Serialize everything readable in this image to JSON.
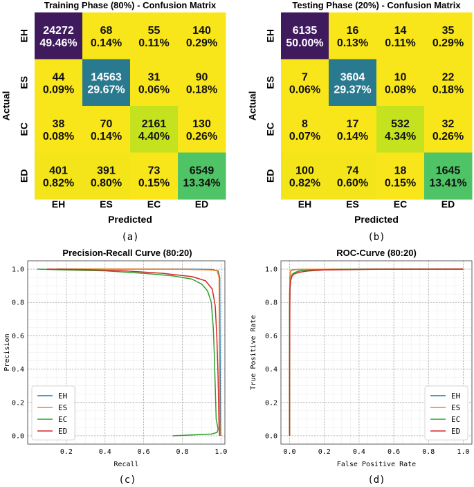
{
  "chart_data": [
    {
      "type": "heatmap",
      "id": "cm-train",
      "title": "Training Phase (80%) - Confusion Matrix",
      "xlabel": "Predicted",
      "ylabel": "Actual",
      "caption": "(a)",
      "categories": [
        "EH",
        "ES",
        "EC",
        "ED"
      ],
      "counts": [
        [
          24272,
          68,
          55,
          140
        ],
        [
          44,
          14563,
          31,
          90
        ],
        [
          38,
          70,
          2161,
          130
        ],
        [
          401,
          391,
          73,
          6549
        ]
      ],
      "percents": [
        [
          "49.46%",
          "0.14%",
          "0.11%",
          "0.29%"
        ],
        [
          "0.09%",
          "29.67%",
          "0.06%",
          "0.18%"
        ],
        [
          "0.08%",
          "0.14%",
          "4.40%",
          "0.26%"
        ],
        [
          "0.82%",
          "0.80%",
          "0.15%",
          "13.34%"
        ]
      ],
      "cell_colors": [
        [
          "#3f1a5c",
          "#f9e61a",
          "#f9e61a",
          "#f9e61a"
        ],
        [
          "#f9e61a",
          "#2a7a8f",
          "#f9e61a",
          "#f9e61a"
        ],
        [
          "#f9e61a",
          "#f9e61a",
          "#c5e21f",
          "#f9e61a"
        ],
        [
          "#f3e51a",
          "#f3e51a",
          "#f9e61a",
          "#4fc466"
        ]
      ],
      "dark_text_cells": [
        [
          false,
          true,
          true,
          true
        ],
        [
          true,
          false,
          true,
          true
        ],
        [
          true,
          true,
          true,
          true
        ],
        [
          true,
          true,
          true,
          true
        ]
      ]
    },
    {
      "type": "heatmap",
      "id": "cm-test",
      "title": "Testing Phase (20%) - Confusion Matrix",
      "xlabel": "Predicted",
      "ylabel": "Actual",
      "caption": "(b)",
      "categories": [
        "EH",
        "ES",
        "EC",
        "ED"
      ],
      "counts": [
        [
          6135,
          16,
          14,
          35
        ],
        [
          7,
          3604,
          10,
          22
        ],
        [
          8,
          17,
          532,
          32
        ],
        [
          100,
          74,
          18,
          1645
        ]
      ],
      "percents": [
        [
          "50.00%",
          "0.13%",
          "0.11%",
          "0.29%"
        ],
        [
          "0.06%",
          "29.37%",
          "0.08%",
          "0.18%"
        ],
        [
          "0.07%",
          "0.14%",
          "4.34%",
          "0.26%"
        ],
        [
          "0.82%",
          "0.60%",
          "0.15%",
          "13.41%"
        ]
      ],
      "cell_colors": [
        [
          "#3f1a5c",
          "#f9e61a",
          "#f9e61a",
          "#f9e61a"
        ],
        [
          "#f9e61a",
          "#2a7a8f",
          "#f9e61a",
          "#f9e61a"
        ],
        [
          "#f9e61a",
          "#f9e61a",
          "#c5e21f",
          "#f9e61a"
        ],
        [
          "#f3e51a",
          "#f3e51a",
          "#f9e61a",
          "#4fc466"
        ]
      ],
      "dark_text_cells": [
        [
          false,
          true,
          true,
          true
        ],
        [
          true,
          false,
          true,
          true
        ],
        [
          true,
          true,
          true,
          true
        ],
        [
          true,
          true,
          true,
          true
        ]
      ]
    },
    {
      "type": "line",
      "id": "pr-curve",
      "title": "Precision-Recall Curve (80:20)",
      "xlabel": "Recall",
      "ylabel": "Precision",
      "caption": "(c)",
      "xlim": [
        0.0,
        1.02
      ],
      "ylim": [
        -0.05,
        1.05
      ],
      "xticks": [
        "0.2",
        "0.4",
        "0.6",
        "0.8",
        "1.0"
      ],
      "xtick_values": [
        0.2,
        0.4,
        0.6,
        0.8,
        1.0
      ],
      "yticks": [
        "0.0",
        "0.2",
        "0.4",
        "0.6",
        "0.8",
        "1.0"
      ],
      "ytick_values": [
        0.0,
        0.2,
        0.4,
        0.6,
        0.8,
        1.0
      ],
      "grid": true,
      "legend_position": "bottom-left",
      "series": [
        {
          "name": "EH",
          "color": "#1f77b4",
          "x": [
            0.15,
            0.5,
            0.8,
            0.95,
            0.985,
            0.993,
            0.995,
            0.997,
            0.998
          ],
          "y": [
            1.0,
            1.0,
            1.0,
            0.998,
            0.99,
            0.95,
            0.5,
            0.1,
            0.0
          ]
        },
        {
          "name": "ES",
          "color": "#ff7f0e",
          "x": [
            0.15,
            0.5,
            0.8,
            0.95,
            0.98,
            0.99,
            0.992,
            0.994,
            0.995
          ],
          "y": [
            1.0,
            1.0,
            0.999,
            0.995,
            0.99,
            0.95,
            0.5,
            0.1,
            0.0
          ]
        },
        {
          "name": "EC",
          "color": "#2ca02c",
          "x": [
            0.05,
            0.2,
            0.4,
            0.6,
            0.75,
            0.85,
            0.9,
            0.93,
            0.95,
            0.96,
            0.965,
            0.97,
            0.975,
            0.985,
            0.98,
            0.95,
            0.85,
            0.75
          ],
          "y": [
            1.0,
            0.995,
            0.99,
            0.975,
            0.96,
            0.94,
            0.91,
            0.87,
            0.8,
            0.65,
            0.5,
            0.3,
            0.1,
            0.04,
            0.02,
            0.01,
            0.005,
            0.0
          ]
        },
        {
          "name": "ED",
          "color": "#d62728",
          "x": [
            0.1,
            0.3,
            0.5,
            0.7,
            0.85,
            0.92,
            0.955,
            0.97,
            0.978,
            0.985,
            0.988,
            0.99,
            0.992,
            0.993
          ],
          "y": [
            1.0,
            0.997,
            0.99,
            0.975,
            0.955,
            0.93,
            0.88,
            0.78,
            0.6,
            0.35,
            0.15,
            0.05,
            0.01,
            0.0
          ]
        }
      ]
    },
    {
      "type": "line",
      "id": "roc-curve",
      "title": "ROC-Curve (80:20)",
      "xlabel": "False Positive Rate",
      "ylabel": "True Positive Rate",
      "caption": "(d)",
      "xlim": [
        -0.05,
        1.05
      ],
      "ylim": [
        -0.05,
        1.05
      ],
      "xticks": [
        "0.0",
        "0.2",
        "0.4",
        "0.6",
        "0.8",
        "1.0"
      ],
      "xtick_values": [
        0.0,
        0.2,
        0.4,
        0.6,
        0.8,
        1.0
      ],
      "yticks": [
        "0.0",
        "0.2",
        "0.4",
        "0.6",
        "0.8",
        "1.0"
      ],
      "ytick_values": [
        0.0,
        0.2,
        0.4,
        0.6,
        0.8,
        1.0
      ],
      "grid": true,
      "legend_position": "bottom-right",
      "series": [
        {
          "name": "EH",
          "color": "#1f77b4",
          "x": [
            0.0,
            0.0,
            0.002,
            0.005,
            0.01,
            0.03,
            0.1,
            0.5,
            1.0
          ],
          "y": [
            0.0,
            0.8,
            0.95,
            0.985,
            0.993,
            0.997,
            0.999,
            1.0,
            1.0
          ]
        },
        {
          "name": "ES",
          "color": "#ff7f0e",
          "x": [
            0.0,
            0.0,
            0.002,
            0.005,
            0.01,
            0.03,
            0.1,
            0.5,
            1.0
          ],
          "y": [
            0.0,
            0.85,
            0.96,
            0.99,
            0.995,
            0.998,
            0.999,
            1.0,
            1.0
          ]
        },
        {
          "name": "EC",
          "color": "#2ca02c",
          "x": [
            0.0,
            0.0,
            0.003,
            0.008,
            0.015,
            0.03,
            0.06,
            0.12,
            0.3,
            0.6,
            1.0
          ],
          "y": [
            0.0,
            0.75,
            0.9,
            0.95,
            0.97,
            0.98,
            0.99,
            0.995,
            0.998,
            1.0,
            1.0
          ]
        },
        {
          "name": "ED",
          "color": "#d62728",
          "x": [
            0.0,
            0.0,
            0.002,
            0.006,
            0.012,
            0.025,
            0.05,
            0.1,
            0.2,
            0.5,
            1.0
          ],
          "y": [
            0.0,
            0.4,
            0.88,
            0.93,
            0.955,
            0.97,
            0.98,
            0.988,
            0.995,
            0.999,
            1.0
          ]
        }
      ]
    }
  ]
}
